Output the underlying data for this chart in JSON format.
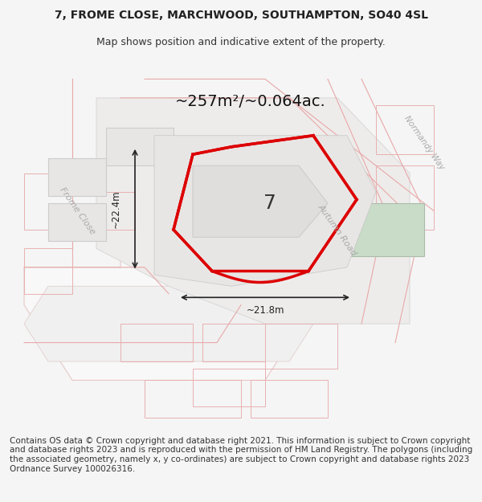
{
  "title_line1": "7, FROME CLOSE, MARCHWOOD, SOUTHAMPTON, SO40 4SL",
  "title_line2": "Map shows position and indicative extent of the property.",
  "footer_text": "Contains OS data © Crown copyright and database right 2021. This information is subject to Crown copyright and database rights 2023 and is reproduced with the permission of HM Land Registry. The polygons (including the associated geometry, namely x, y co-ordinates) are subject to Crown copyright and database rights 2023 Ordnance Survey 100026316.",
  "area_label": "~257m²/~0.064ac.",
  "label_number": "7",
  "dim_width": "~21.8m",
  "dim_height": "~22.4m",
  "road_label_frome": "Frome Close",
  "road_label_autumn": "Autumn Road",
  "road_label_normandy": "Normandy Way",
  "bg_color": "#f5f5f5",
  "map_bg": "#f0efee",
  "building_fill": "#e8e6e4",
  "building_edge": "#cccccc",
  "road_fill": "#ffffff",
  "road_edge": "#dddddd",
  "red_polygon_color": "#dd0000",
  "green_fill": "#c8dcc8",
  "text_color": "#333333",
  "road_text_color": "#aaaaaa",
  "title_fontsize": 10,
  "subtitle_fontsize": 9,
  "footer_fontsize": 7.5
}
